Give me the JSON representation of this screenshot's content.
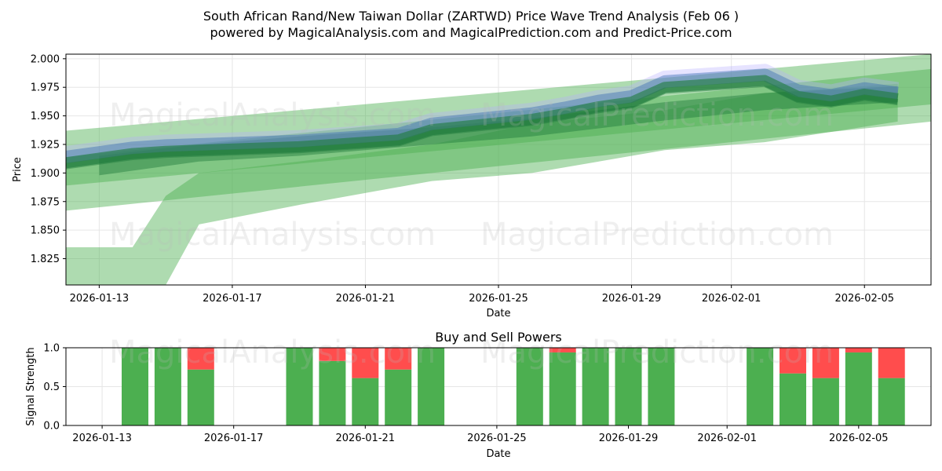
{
  "title_line1": "South African Rand/New Taiwan Dollar (ZARTWD) Price Wave Trend Analysis (Feb 06 )",
  "title_line2": "powered by MagicalAnalysis.com and MagicalPrediction.com and Predict-Price.com",
  "watermark_left": "MagicalAnalysis.com",
  "watermark_right": "MagicalPrediction.com",
  "colors": {
    "green_band": "#4caf50",
    "dark_green": "#1e7b3c",
    "blue_line": "#3f6fb5",
    "purple_halo": "#b8b0ff",
    "buy": "#4caf50",
    "sell": "#ff4d4d"
  },
  "chart_data": [
    {
      "type": "area",
      "title": "",
      "xlabel": "Date",
      "ylabel": "Price",
      "xlim": [
        "2026-01-12",
        "2026-02-07"
      ],
      "ylim": [
        1.802,
        2.004
      ],
      "grid": true,
      "x_ticks": [
        "2026-01-13",
        "2026-01-17",
        "2026-01-21",
        "2026-01-25",
        "2026-01-29",
        "2026-02-01",
        "2026-02-05"
      ],
      "y_ticks": [
        1.825,
        1.85,
        1.875,
        1.9,
        1.925,
        1.95,
        1.975,
        2.0
      ],
      "y_tick_labels": [
        "1.825",
        "1.850",
        "1.875",
        "1.900",
        "1.925",
        "1.950",
        "1.975",
        "2.000"
      ],
      "series": [
        {
          "name": "wide_upper_band",
          "x": [
            "2026-01-12",
            "2026-02-07"
          ],
          "upper": [
            1.937,
            2.006
          ],
          "lower": [
            1.889,
            1.96
          ]
        },
        {
          "name": "wide_lower_band",
          "x": [
            "2026-01-12",
            "2026-02-07"
          ],
          "upper": [
            1.914,
            1.991
          ],
          "lower": [
            1.867,
            1.945
          ]
        },
        {
          "name": "history_band",
          "x": [
            "2026-01-12",
            "2026-01-14",
            "2026-01-15",
            "2026-01-16",
            "2026-01-19",
            "2026-01-23",
            "2026-01-26",
            "2026-01-30",
            "2026-02-02",
            "2026-02-06"
          ],
          "upper": [
            1.835,
            1.835,
            1.88,
            1.9,
            1.91,
            1.925,
            1.943,
            1.955,
            1.97,
            1.978
          ],
          "lower": [
            1.795,
            1.795,
            1.8,
            1.855,
            1.872,
            1.893,
            1.9,
            1.92,
            1.927,
            1.945
          ]
        },
        {
          "name": "inner_band",
          "x": [
            "2026-01-13",
            "2026-01-16",
            "2026-01-19",
            "2026-01-23",
            "2026-01-26",
            "2026-01-30",
            "2026-02-02",
            "2026-02-06"
          ],
          "upper": [
            1.915,
            1.925,
            1.932,
            1.94,
            1.948,
            1.962,
            1.97,
            1.976
          ],
          "lower": [
            1.898,
            1.91,
            1.915,
            1.925,
            1.932,
            1.946,
            1.955,
            1.962
          ]
        },
        {
          "name": "price_wave",
          "x": [
            "2026-01-12",
            "2026-01-13",
            "2026-01-14",
            "2026-01-15",
            "2026-01-16",
            "2026-01-19",
            "2026-01-21",
            "2026-01-22",
            "2026-01-23",
            "2026-01-26",
            "2026-01-27",
            "2026-01-28",
            "2026-01-29",
            "2026-01-30",
            "2026-02-01",
            "2026-02-02",
            "2026-02-03",
            "2026-02-04",
            "2026-02-05",
            "2026-02-06"
          ],
          "values": [
            1.912,
            1.916,
            1.92,
            1.922,
            1.923,
            1.926,
            1.93,
            1.932,
            1.941,
            1.95,
            1.955,
            1.961,
            1.965,
            1.978,
            1.982,
            1.984,
            1.97,
            1.966,
            1.972,
            1.968
          ]
        }
      ]
    },
    {
      "type": "bar",
      "title": "Buy and Sell Powers",
      "xlabel": "Date",
      "ylabel": "Signal Strength",
      "ylim": [
        0,
        1
      ],
      "x_ticks": [
        "2026-01-13",
        "2026-01-17",
        "2026-01-21",
        "2026-01-25",
        "2026-01-29",
        "2026-02-01",
        "2026-02-05"
      ],
      "y_tick_labels": [
        "0.0",
        "0.5",
        "1.0"
      ],
      "categories": [
        "2026-01-14",
        "2026-01-15",
        "2026-01-16",
        "2026-01-19",
        "2026-01-20",
        "2026-01-21",
        "2026-01-22",
        "2026-01-23",
        "2026-01-26",
        "2026-01-27",
        "2026-01-28",
        "2026-01-29",
        "2026-01-30",
        "2026-02-02",
        "2026-02-03",
        "2026-02-04",
        "2026-02-05",
        "2026-02-06"
      ],
      "series": [
        {
          "name": "buy",
          "values": [
            1.0,
            1.0,
            0.72,
            1.0,
            0.83,
            0.61,
            0.72,
            1.0,
            1.0,
            0.94,
            1.0,
            1.0,
            1.0,
            1.0,
            0.67,
            0.61,
            0.94,
            0.61
          ]
        },
        {
          "name": "sell",
          "values": [
            0.0,
            0.0,
            0.28,
            0.0,
            0.17,
            0.39,
            0.28,
            0.0,
            0.0,
            0.06,
            0.0,
            0.0,
            0.0,
            0.0,
            0.33,
            0.39,
            0.06,
            0.39
          ]
        }
      ]
    }
  ]
}
